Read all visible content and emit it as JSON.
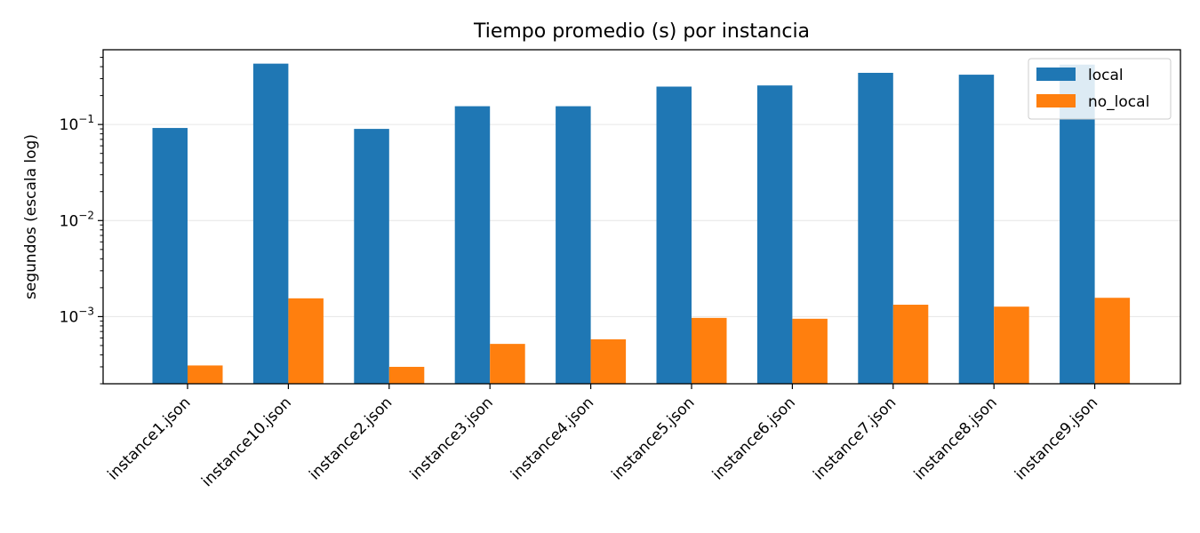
{
  "chart_data": {
    "type": "bar",
    "title": "Tiempo promedio (s) por instancia",
    "xlabel": "",
    "ylabel": "segundos (escala log)",
    "yscale": "log",
    "ylim": [
      0.0002,
      0.6
    ],
    "grid": "y-major",
    "legend_position": "top-right",
    "categories": [
      "instance1.json",
      "instance10.json",
      "instance2.json",
      "instance3.json",
      "instance4.json",
      "instance5.json",
      "instance6.json",
      "instance7.json",
      "instance8.json",
      "instance9.json"
    ],
    "series": [
      {
        "name": "local",
        "color": "#1f77b4",
        "values": [
          0.092,
          0.43,
          0.09,
          0.155,
          0.155,
          0.248,
          0.255,
          0.345,
          0.33,
          0.42
        ]
      },
      {
        "name": "no_local",
        "color": "#ff7f0e",
        "values": [
          0.00031,
          0.00155,
          0.0003,
          0.00052,
          0.00058,
          0.00097,
          0.00095,
          0.00133,
          0.00127,
          0.00157
        ]
      }
    ],
    "ytick_labels": [
      {
        "value": 0.001,
        "base": "10",
        "exp": "−3"
      },
      {
        "value": 0.01,
        "base": "10",
        "exp": "−2"
      },
      {
        "value": 0.1,
        "base": "10",
        "exp": "−1"
      }
    ]
  }
}
